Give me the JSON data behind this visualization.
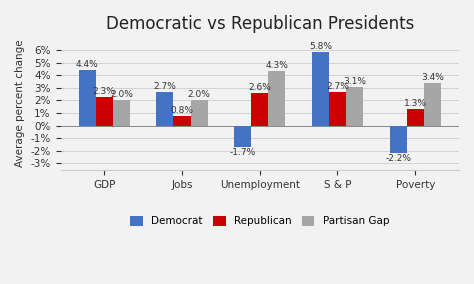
{
  "title": "Democratic vs Republican Presidents",
  "ylabel": "Average percent change",
  "categories": [
    "GDP",
    "Jobs",
    "Unemployment",
    "S & P",
    "Poverty"
  ],
  "democrat": [
    4.4,
    2.7,
    -1.7,
    5.8,
    -2.2
  ],
  "republican": [
    2.3,
    0.8,
    2.6,
    2.7,
    1.3
  ],
  "partisan_gap": [
    2.0,
    2.0,
    4.3,
    3.1,
    3.4
  ],
  "dem_color": "#4472C4",
  "rep_color": "#CC0000",
  "gap_color": "#A6A6A6",
  "ylim": [
    -3.5,
    7.0
  ],
  "yticks": [
    -3,
    -2,
    -1,
    0,
    1,
    2,
    3,
    4,
    5,
    6
  ],
  "legend_labels": [
    "Democrat",
    "Republican",
    "Partisan Gap"
  ],
  "bar_width": 0.22,
  "background_color": "#F2F2F2",
  "title_fontsize": 12,
  "label_fontsize": 6.5,
  "axis_fontsize": 7.5,
  "tick_fontsize": 7.5
}
